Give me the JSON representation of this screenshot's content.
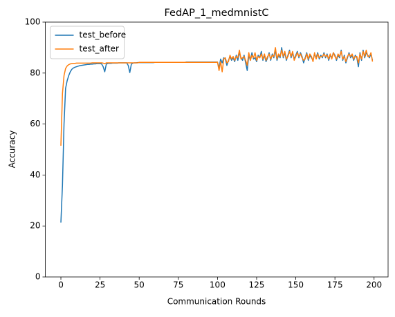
{
  "chart_data": {
    "type": "line",
    "title": "FedAP_1_medmnistC",
    "xlabel": "Communication Rounds",
    "ylabel": "Accuracy",
    "legend": "upper left",
    "xlim": [
      -9.95,
      208.95
    ],
    "ylim": [
      0,
      100
    ],
    "xticks": [
      0,
      25,
      50,
      75,
      100,
      125,
      150,
      175,
      200
    ],
    "yticks": [
      0,
      20,
      40,
      60,
      80,
      100
    ],
    "x": [
      0,
      1,
      2,
      3,
      4,
      5,
      6,
      7,
      8,
      9,
      10,
      11,
      12,
      13,
      14,
      15,
      16,
      17,
      18,
      19,
      20,
      21,
      22,
      23,
      24,
      25,
      26,
      27,
      28,
      29,
      30,
      31,
      32,
      33,
      34,
      35,
      36,
      37,
      38,
      39,
      40,
      41,
      42,
      43,
      44,
      45,
      46,
      47,
      48,
      49,
      50,
      51,
      52,
      53,
      54,
      55,
      56,
      57,
      58,
      59,
      60,
      61,
      62,
      63,
      64,
      65,
      66,
      67,
      68,
      69,
      70,
      71,
      72,
      73,
      74,
      75,
      76,
      77,
      78,
      79,
      80,
      81,
      82,
      83,
      84,
      85,
      86,
      87,
      88,
      89,
      90,
      91,
      92,
      93,
      94,
      95,
      96,
      97,
      98,
      99,
      100,
      101,
      102,
      103,
      104,
      105,
      106,
      107,
      108,
      109,
      110,
      111,
      112,
      113,
      114,
      115,
      116,
      117,
      118,
      119,
      120,
      121,
      122,
      123,
      124,
      125,
      126,
      127,
      128,
      129,
      130,
      131,
      132,
      133,
      134,
      135,
      136,
      137,
      138,
      139,
      140,
      141,
      142,
      143,
      144,
      145,
      146,
      147,
      148,
      149,
      150,
      151,
      152,
      153,
      154,
      155,
      156,
      157,
      158,
      159,
      160,
      161,
      162,
      163,
      164,
      165,
      166,
      167,
      168,
      169,
      170,
      171,
      172,
      173,
      174,
      175,
      176,
      177,
      178,
      179,
      180,
      181,
      182,
      183,
      184,
      185,
      186,
      187,
      188,
      189,
      190,
      191,
      192,
      193,
      194,
      195,
      196,
      197,
      198,
      199
    ],
    "series": [
      {
        "name": "test_before",
        "color": "#1f77b4",
        "values": [
          21.3,
          36,
          60,
          74,
          77,
          79,
          80.5,
          81.5,
          82,
          82.3,
          82.5,
          82.7,
          82.9,
          83,
          83.1,
          83.2,
          83.3,
          83.4,
          83.4,
          83.5,
          83.5,
          83.6,
          83.6,
          83.7,
          83.7,
          83.7,
          83.6,
          82.5,
          80.5,
          83.5,
          83.8,
          83.8,
          83.8,
          83.9,
          83.9,
          83.9,
          83.9,
          84,
          84,
          84,
          84,
          84,
          84,
          83,
          80.2,
          83.5,
          83.9,
          84,
          84,
          84.1,
          84.1,
          84.1,
          84.1,
          84.1,
          84.1,
          84.1,
          84.1,
          84.1,
          84.1,
          84.1,
          84.2,
          84.2,
          84.2,
          84.2,
          84.2,
          84.2,
          84.2,
          84.2,
          84.2,
          84.2,
          84.2,
          84.2,
          84.2,
          84.2,
          84.2,
          84.2,
          84.2,
          84.2,
          84.2,
          84.2,
          84.3,
          84.3,
          84.3,
          84.3,
          84.3,
          84.3,
          84.3,
          84.3,
          84.3,
          84.3,
          84.3,
          84.3,
          84.3,
          84.3,
          84.3,
          84.3,
          84.3,
          84.3,
          84.3,
          84.3,
          84.3,
          82,
          85.5,
          84,
          86,
          85.5,
          83,
          85,
          86.5,
          85,
          86,
          84.5,
          87,
          85,
          88,
          86,
          85,
          87,
          84,
          81,
          87,
          85,
          88,
          85.5,
          86,
          84.5,
          87,
          86,
          88.5,
          85,
          87,
          84.5,
          86,
          88,
          85,
          87.5,
          86,
          89,
          85,
          87,
          86,
          90,
          86,
          88,
          85,
          87,
          89,
          86,
          88,
          85.5,
          87,
          88.5,
          86,
          88,
          86.5,
          84,
          86,
          88,
          85,
          87,
          86,
          85,
          87.5,
          86,
          88,
          85.5,
          87,
          86,
          88,
          86,
          87.5,
          85,
          87,
          86,
          88,
          87,
          85,
          87,
          86,
          89,
          85,
          87,
          84,
          86,
          88,
          86,
          87,
          85,
          87,
          86,
          82.5,
          88,
          85,
          89,
          86,
          88,
          87,
          86,
          87.5,
          85
        ]
      },
      {
        "name": "test_after",
        "color": "#ff7f0e",
        "values": [
          51.5,
          72,
          79,
          81.8,
          82.8,
          83.3,
          83.6,
          83.7,
          83.8,
          83.8,
          83.9,
          83.9,
          83.9,
          83.9,
          83.9,
          83.9,
          83.9,
          83.9,
          83.9,
          83.9,
          84,
          84,
          84,
          84,
          84,
          84,
          84,
          83.9,
          83.7,
          84,
          84,
          84,
          84,
          84,
          84,
          84,
          84,
          84,
          84,
          84,
          84,
          84,
          84,
          84,
          84,
          84,
          84,
          84,
          84,
          84,
          84.2,
          84.2,
          84.2,
          84.2,
          84.2,
          84.2,
          84.2,
          84.2,
          84.2,
          84.2,
          84.2,
          84.2,
          84.2,
          84.2,
          84.2,
          84.2,
          84.2,
          84.2,
          84.2,
          84.2,
          84.2,
          84.2,
          84.2,
          84.2,
          84.2,
          84.2,
          84.2,
          84.2,
          84.2,
          84.2,
          84.2,
          84.2,
          84.2,
          84.2,
          84.2,
          84.2,
          84.2,
          84.2,
          84.2,
          84.2,
          84.2,
          84.2,
          84.2,
          84.2,
          84.2,
          84.2,
          84.2,
          84.2,
          84.2,
          84.2,
          84.3,
          81,
          84.5,
          80.5,
          85.5,
          86,
          84,
          84.5,
          87,
          85.5,
          86.5,
          85,
          86.5,
          86,
          89,
          85.5,
          86,
          86.5,
          85,
          83,
          88,
          85,
          87,
          86,
          88,
          85,
          86.5,
          86,
          87.5,
          85.5,
          87.5,
          85,
          86.5,
          87.5,
          85.5,
          87,
          86.5,
          90,
          85.5,
          87.5,
          86.5,
          89,
          86.5,
          88.5,
          85.5,
          86.5,
          88.5,
          86.5,
          88.5,
          85,
          86.5,
          88,
          86.5,
          87.5,
          86,
          85,
          85.5,
          87.5,
          85.5,
          87.5,
          86.5,
          84.5,
          88,
          85.5,
          87.5,
          86,
          86.5,
          86.5,
          87.5,
          86.5,
          87,
          85.5,
          87.5,
          85.5,
          88,
          86.5,
          85.5,
          87.5,
          86.5,
          88.5,
          85.5,
          86.5,
          84.5,
          86.5,
          87.5,
          86.5,
          87.5,
          85.5,
          86.5,
          86.5,
          84,
          87.5,
          85.5,
          88.5,
          86.5,
          89,
          86.5,
          86.5,
          88,
          84.5
        ]
      }
    ]
  }
}
